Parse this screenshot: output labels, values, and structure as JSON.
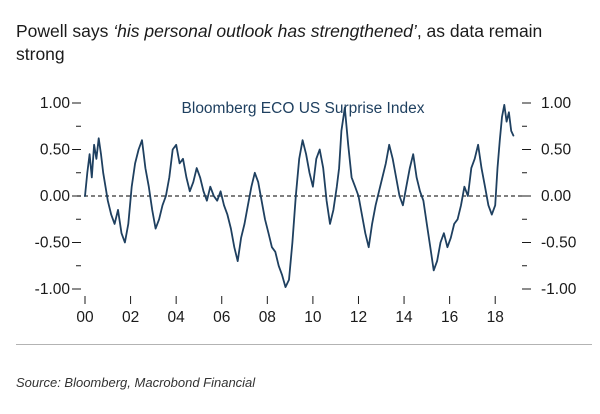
{
  "title": {
    "prefix": "Powell says ",
    "quote": "‘his personal outlook has strengthened’",
    "suffix": ", as data remain strong"
  },
  "source": "Source: Bloomberg, Macrobond Financial",
  "colors": {
    "line": "#1f4060",
    "zero_line": "#333333",
    "text": "#1a1a1a",
    "rule": "#b3b3b3"
  },
  "chart_data": {
    "type": "line",
    "title": "",
    "series": [
      {
        "name": "Bloomberg ECO US Surprise Index",
        "x": [
          2000.0,
          2000.1,
          2000.2,
          2000.3,
          2000.4,
          2000.5,
          2000.6,
          2000.7,
          2000.8,
          2000.9,
          2001.0,
          2001.15,
          2001.3,
          2001.45,
          2001.6,
          2001.75,
          2001.9,
          2002.05,
          2002.2,
          2002.35,
          2002.5,
          2002.65,
          2002.8,
          2002.95,
          2003.1,
          2003.25,
          2003.4,
          2003.55,
          2003.7,
          2003.85,
          2004.0,
          2004.15,
          2004.3,
          2004.45,
          2004.6,
          2004.75,
          2004.9,
          2005.05,
          2005.2,
          2005.35,
          2005.5,
          2005.65,
          2005.8,
          2005.95,
          2006.1,
          2006.25,
          2006.4,
          2006.55,
          2006.7,
          2006.85,
          2007.0,
          2007.15,
          2007.3,
          2007.45,
          2007.6,
          2007.75,
          2007.9,
          2008.05,
          2008.2,
          2008.35,
          2008.5,
          2008.65,
          2008.8,
          2008.95,
          2009.1,
          2009.25,
          2009.4,
          2009.55,
          2009.7,
          2009.85,
          2010.0,
          2010.15,
          2010.3,
          2010.45,
          2010.6,
          2010.75,
          2010.9,
          2011.05,
          2011.15,
          2011.25,
          2011.4,
          2011.55,
          2011.7,
          2011.85,
          2012.0,
          2012.15,
          2012.3,
          2012.45,
          2012.6,
          2012.75,
          2012.9,
          2013.05,
          2013.2,
          2013.35,
          2013.5,
          2013.65,
          2013.8,
          2013.95,
          2014.1,
          2014.25,
          2014.4,
          2014.55,
          2014.7,
          2014.85,
          2015.0,
          2015.15,
          2015.3,
          2015.45,
          2015.6,
          2015.75,
          2015.9,
          2016.05,
          2016.2,
          2016.35,
          2016.5,
          2016.65,
          2016.8,
          2016.95,
          2017.1,
          2017.25,
          2017.4,
          2017.55,
          2017.7,
          2017.85,
          2018.0,
          2018.1,
          2018.2,
          2018.3,
          2018.4,
          2018.5,
          2018.6,
          2018.7,
          2018.8
        ],
        "y": [
          0.0,
          0.25,
          0.45,
          0.2,
          0.55,
          0.4,
          0.62,
          0.45,
          0.25,
          0.1,
          -0.05,
          -0.2,
          -0.3,
          -0.15,
          -0.4,
          -0.5,
          -0.3,
          0.1,
          0.35,
          0.5,
          0.6,
          0.3,
          0.1,
          -0.15,
          -0.35,
          -0.25,
          -0.1,
          0.0,
          0.2,
          0.5,
          0.55,
          0.35,
          0.4,
          0.2,
          0.05,
          0.15,
          0.3,
          0.2,
          0.05,
          -0.05,
          0.1,
          0.0,
          -0.05,
          0.05,
          -0.1,
          -0.2,
          -0.35,
          -0.55,
          -0.7,
          -0.45,
          -0.3,
          -0.1,
          0.1,
          0.25,
          0.15,
          -0.05,
          -0.25,
          -0.4,
          -0.55,
          -0.6,
          -0.75,
          -0.85,
          -0.98,
          -0.9,
          -0.5,
          0.0,
          0.4,
          0.6,
          0.45,
          0.25,
          0.1,
          0.4,
          0.5,
          0.3,
          -0.05,
          -0.3,
          -0.15,
          0.1,
          0.3,
          0.7,
          0.95,
          0.55,
          0.2,
          0.1,
          0.0,
          -0.2,
          -0.4,
          -0.55,
          -0.3,
          -0.1,
          0.05,
          0.2,
          0.35,
          0.55,
          0.4,
          0.2,
          0.0,
          -0.1,
          0.1,
          0.3,
          0.45,
          0.2,
          0.05,
          -0.05,
          -0.3,
          -0.55,
          -0.8,
          -0.7,
          -0.5,
          -0.4,
          -0.55,
          -0.45,
          -0.3,
          -0.25,
          -0.1,
          0.1,
          0.0,
          0.3,
          0.4,
          0.55,
          0.3,
          0.1,
          -0.1,
          -0.2,
          -0.1,
          0.3,
          0.6,
          0.85,
          0.98,
          0.8,
          0.9,
          0.7,
          0.65
        ]
      }
    ],
    "xlabel": "",
    "ylabel": "",
    "xlim": [
      2000,
      2019
    ],
    "ylim": [
      -1.0,
      1.0
    ],
    "x_ticks": [
      2000,
      2002,
      2004,
      2006,
      2008,
      2010,
      2012,
      2014,
      2016,
      2018
    ],
    "x_tick_labels": [
      "00",
      "02",
      "04",
      "06",
      "08",
      "10",
      "12",
      "14",
      "16",
      "18"
    ],
    "y_ticks": [
      1.0,
      0.5,
      0.0,
      -0.5,
      -1.0
    ],
    "y_tick_labels": [
      "1.00",
      "0.50",
      "0.00",
      "-0.50",
      "-1.00"
    ],
    "reference_line": 0,
    "grid": false,
    "legend": "top-center"
  }
}
